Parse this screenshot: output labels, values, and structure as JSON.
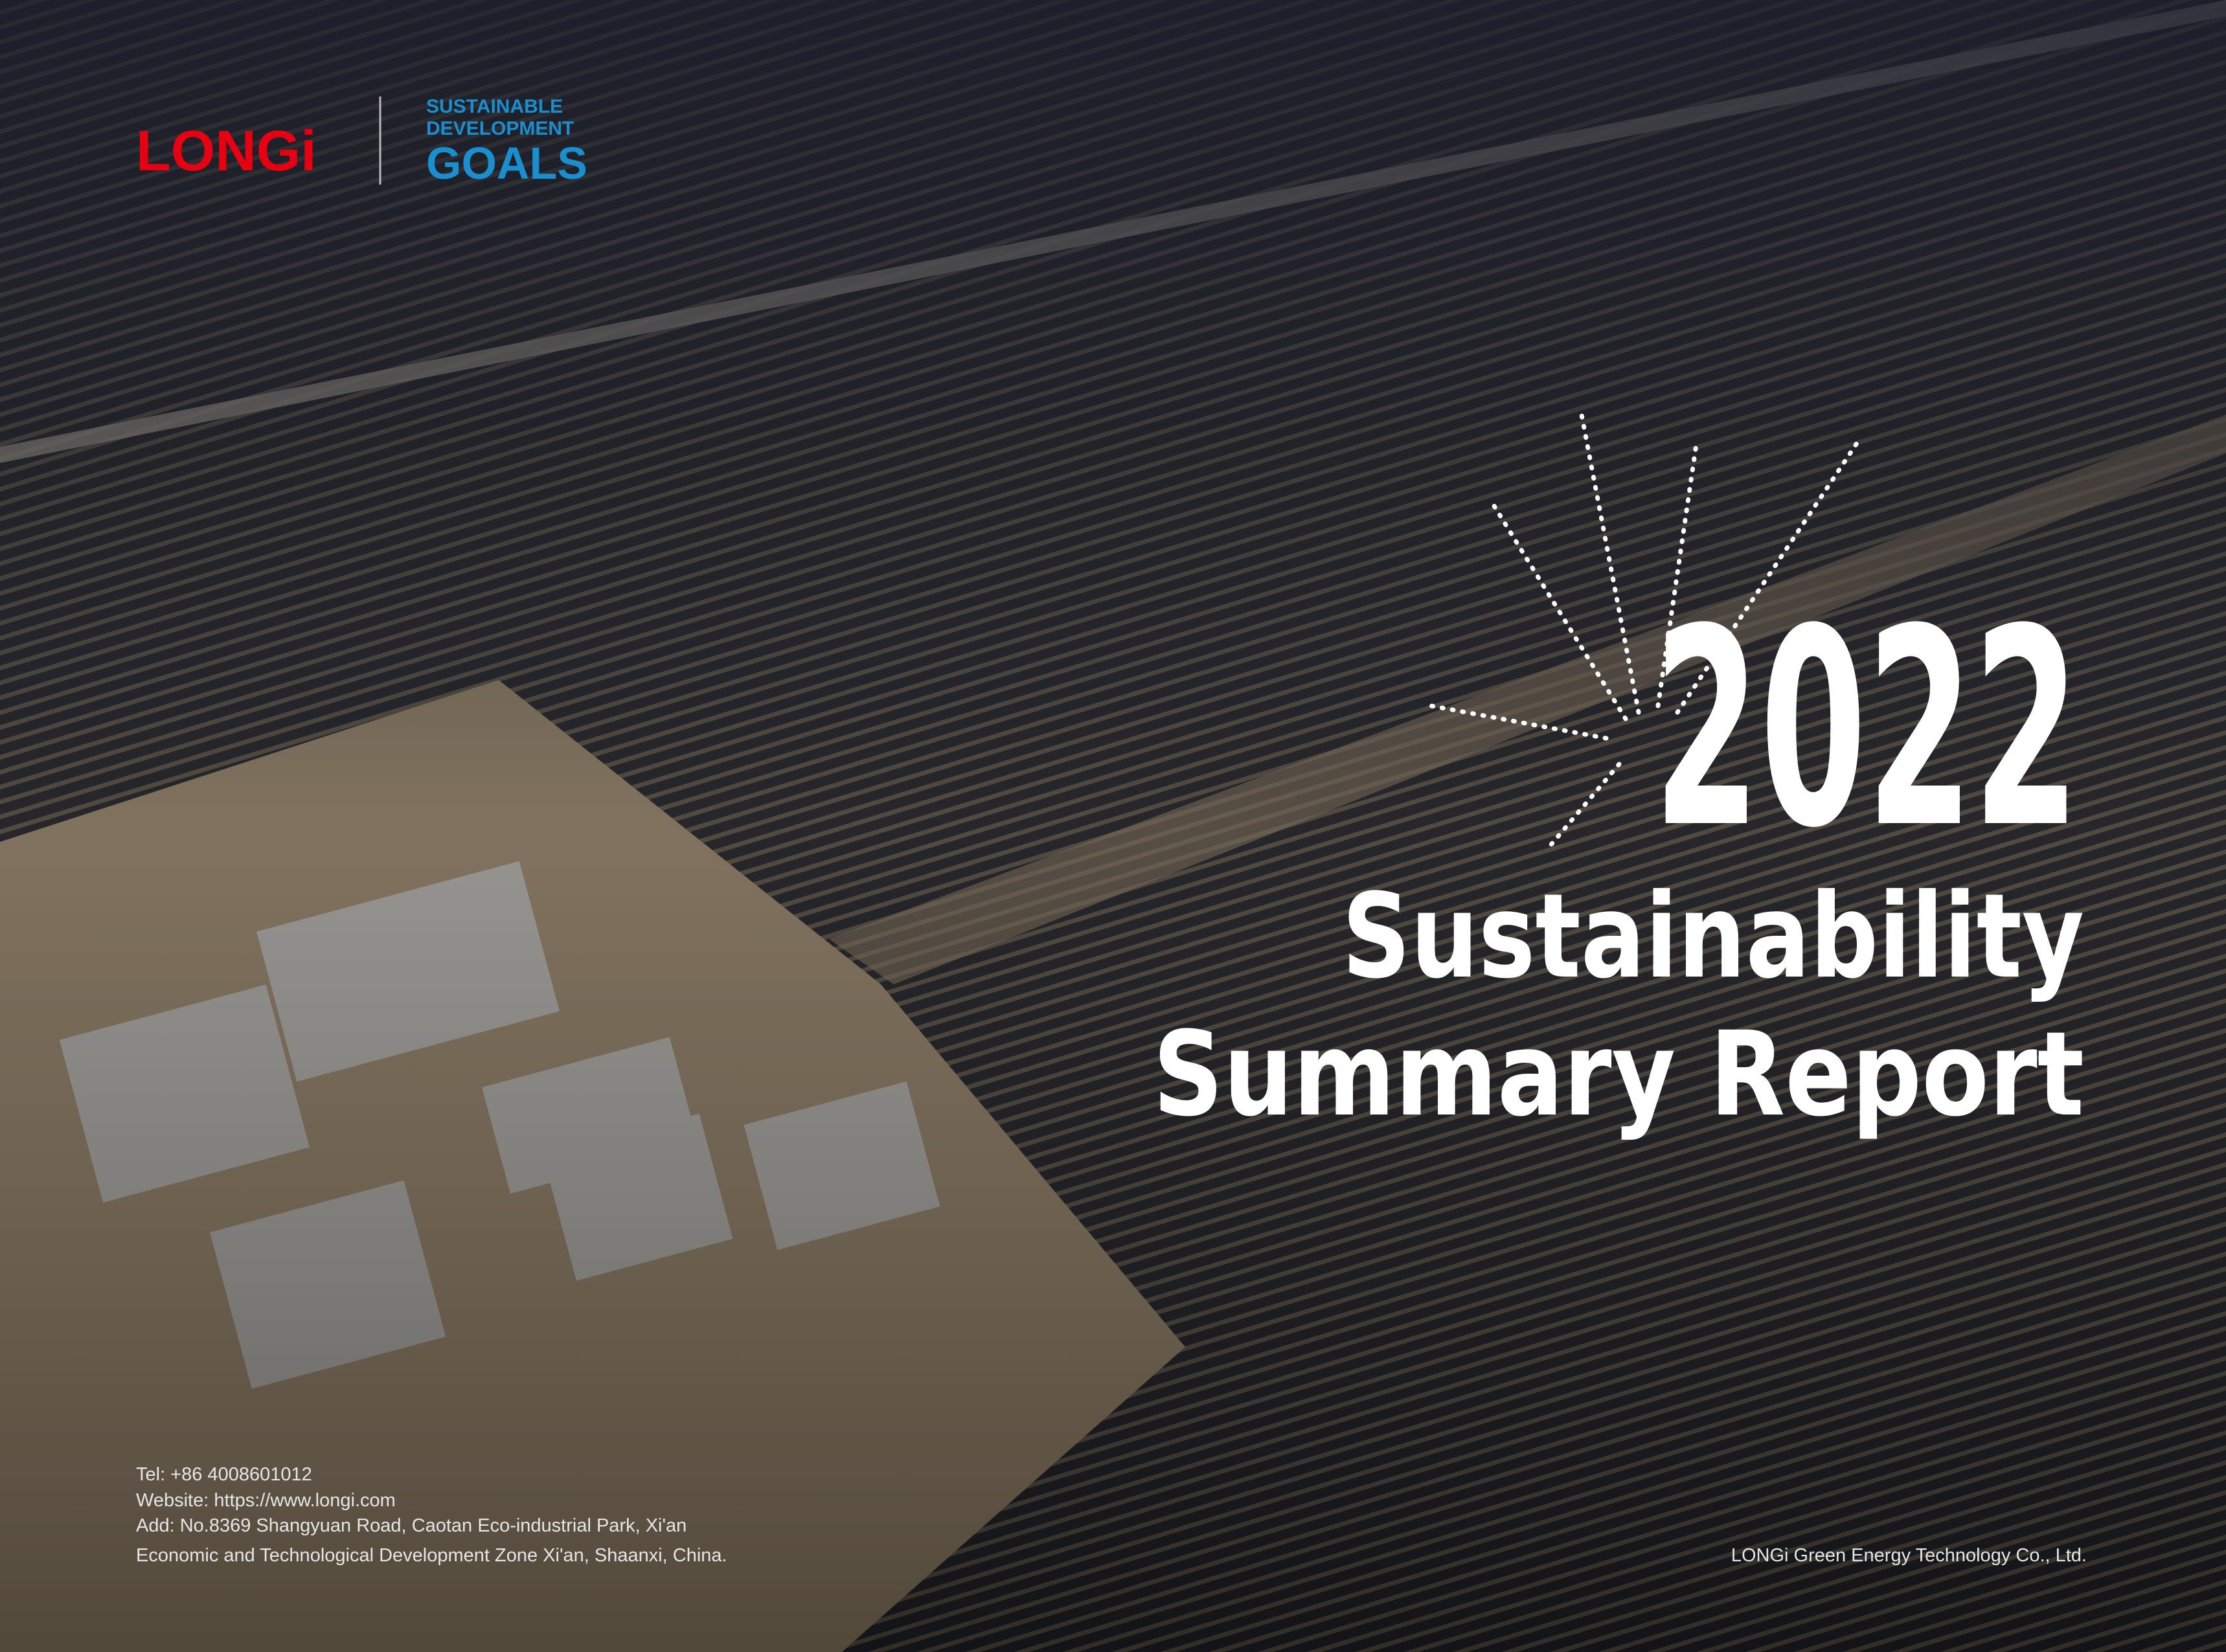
{
  "header": {
    "brand": "LONGi",
    "sdg": [
      "SUSTAINABLE",
      "DEVELOPMENT",
      "GOALS"
    ]
  },
  "title": {
    "year": "2022",
    "line1": "Sustainability",
    "line2": "Summary Report"
  },
  "contact": [
    "Tel: +86 4008601012",
    "Website: https://www.longi.com",
    "Add:  No.8369 Shangyuan Road, Caotan Eco-industrial Park, Xi'an",
    "Economic and Technological Development Zone Xi'an, Shaanxi, China."
  ],
  "company": "LONGi Green Energy Technology Co., Ltd."
}
